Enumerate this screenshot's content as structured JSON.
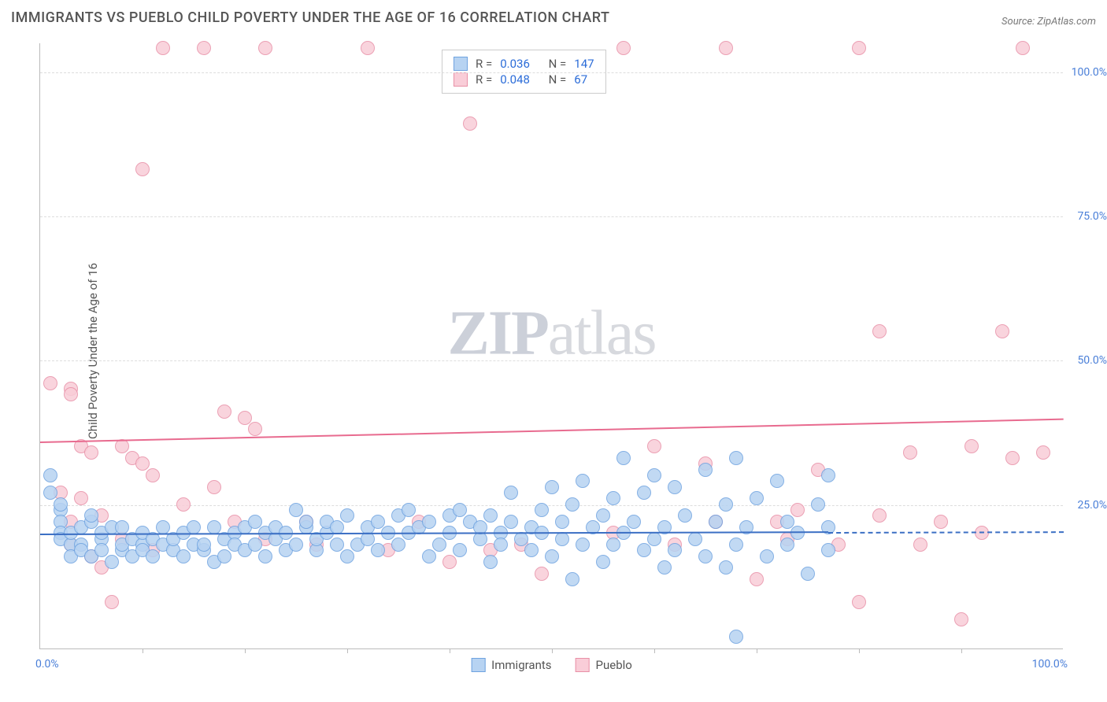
{
  "chart": {
    "type": "scatter",
    "title": "IMMIGRANTS VS PUEBLO CHILD POVERTY UNDER THE AGE OF 16 CORRELATION CHART",
    "source_label": "Source: ZipAtlas.com",
    "watermark": {
      "bold": "ZIP",
      "light": "atlas"
    },
    "yaxis": {
      "label": "Child Poverty Under the Age of 16",
      "min": 0,
      "max": 105,
      "ticks": [
        25,
        50,
        75,
        100
      ],
      "tick_labels": [
        "25.0%",
        "50.0%",
        "75.0%",
        "100.0%"
      ],
      "label_fontsize": 15,
      "tick_color": "#4a7fd8"
    },
    "xaxis": {
      "min": 0,
      "max": 100,
      "ticks": [
        10,
        20,
        30,
        40,
        50,
        60,
        70,
        80,
        90
      ],
      "start_label": "0.0%",
      "end_label": "100.0%",
      "tick_color": "#4a7fd8"
    },
    "grid_color": "#dddddd",
    "background_color": "#ffffff",
    "series": [
      {
        "name": "Immigrants",
        "fill": "#b7d3f2",
        "stroke": "#6fa3e0",
        "marker_radius": 9,
        "stats": {
          "R": "0.036",
          "N": "147"
        },
        "trend": {
          "y_start": 20,
          "y_end": 20.5,
          "x_solid_end": 77,
          "color": "#3b6fc4"
        },
        "points": [
          [
            1,
            30
          ],
          [
            1,
            27
          ],
          [
            2,
            24
          ],
          [
            2,
            22
          ],
          [
            2,
            20
          ],
          [
            2,
            19
          ],
          [
            2,
            25
          ],
          [
            3,
            18
          ],
          [
            3,
            20
          ],
          [
            3,
            16
          ],
          [
            4,
            21
          ],
          [
            4,
            18
          ],
          [
            4,
            17
          ],
          [
            5,
            22
          ],
          [
            5,
            23
          ],
          [
            5,
            16
          ],
          [
            6,
            19
          ],
          [
            6,
            17
          ],
          [
            6,
            20
          ],
          [
            7,
            15
          ],
          [
            7,
            21
          ],
          [
            8,
            21
          ],
          [
            8,
            17
          ],
          [
            8,
            18
          ],
          [
            9,
            19
          ],
          [
            9,
            16
          ],
          [
            10,
            18
          ],
          [
            10,
            20
          ],
          [
            10,
            17
          ],
          [
            11,
            19
          ],
          [
            11,
            16
          ],
          [
            12,
            18
          ],
          [
            12,
            21
          ],
          [
            13,
            17
          ],
          [
            13,
            19
          ],
          [
            14,
            20
          ],
          [
            14,
            16
          ],
          [
            15,
            18
          ],
          [
            15,
            21
          ],
          [
            16,
            17
          ],
          [
            16,
            18
          ],
          [
            17,
            21
          ],
          [
            17,
            15
          ],
          [
            18,
            19
          ],
          [
            18,
            16
          ],
          [
            19,
            20
          ],
          [
            19,
            18
          ],
          [
            20,
            21
          ],
          [
            20,
            17
          ],
          [
            21,
            22
          ],
          [
            21,
            18
          ],
          [
            22,
            16
          ],
          [
            22,
            20
          ],
          [
            23,
            19
          ],
          [
            23,
            21
          ],
          [
            24,
            17
          ],
          [
            24,
            20
          ],
          [
            25,
            24
          ],
          [
            25,
            18
          ],
          [
            26,
            21
          ],
          [
            26,
            22
          ],
          [
            27,
            17
          ],
          [
            27,
            19
          ],
          [
            28,
            20
          ],
          [
            28,
            22
          ],
          [
            29,
            18
          ],
          [
            29,
            21
          ],
          [
            30,
            23
          ],
          [
            30,
            16
          ],
          [
            31,
            18
          ],
          [
            32,
            19
          ],
          [
            32,
            21
          ],
          [
            33,
            22
          ],
          [
            33,
            17
          ],
          [
            34,
            20
          ],
          [
            35,
            23
          ],
          [
            35,
            18
          ],
          [
            36,
            24
          ],
          [
            36,
            20
          ],
          [
            37,
            21
          ],
          [
            38,
            22
          ],
          [
            38,
            16
          ],
          [
            39,
            18
          ],
          [
            40,
            23
          ],
          [
            40,
            20
          ],
          [
            41,
            24
          ],
          [
            41,
            17
          ],
          [
            42,
            22
          ],
          [
            43,
            19
          ],
          [
            43,
            21
          ],
          [
            44,
            15
          ],
          [
            44,
            23
          ],
          [
            45,
            20
          ],
          [
            45,
            18
          ],
          [
            46,
            22
          ],
          [
            46,
            27
          ],
          [
            47,
            19
          ],
          [
            48,
            17
          ],
          [
            48,
            21
          ],
          [
            49,
            24
          ],
          [
            49,
            20
          ],
          [
            50,
            28
          ],
          [
            50,
            16
          ],
          [
            51,
            19
          ],
          [
            51,
            22
          ],
          [
            52,
            25
          ],
          [
            52,
            12
          ],
          [
            53,
            29
          ],
          [
            53,
            18
          ],
          [
            54,
            21
          ],
          [
            55,
            23
          ],
          [
            55,
            15
          ],
          [
            56,
            26
          ],
          [
            56,
            18
          ],
          [
            57,
            33
          ],
          [
            57,
            20
          ],
          [
            58,
            22
          ],
          [
            59,
            17
          ],
          [
            59,
            27
          ],
          [
            60,
            30
          ],
          [
            60,
            19
          ],
          [
            61,
            21
          ],
          [
            61,
            14
          ],
          [
            62,
            28
          ],
          [
            62,
            17
          ],
          [
            63,
            23
          ],
          [
            64,
            19
          ],
          [
            65,
            31
          ],
          [
            65,
            16
          ],
          [
            66,
            22
          ],
          [
            67,
            25
          ],
          [
            67,
            14
          ],
          [
            68,
            33
          ],
          [
            68,
            18
          ],
          [
            68,
            2
          ],
          [
            69,
            21
          ],
          [
            70,
            26
          ],
          [
            71,
            16
          ],
          [
            72,
            29
          ],
          [
            73,
            18
          ],
          [
            73,
            22
          ],
          [
            74,
            20
          ],
          [
            75,
            13
          ],
          [
            76,
            25
          ],
          [
            77,
            17
          ],
          [
            77,
            21
          ],
          [
            77,
            30
          ]
        ]
      },
      {
        "name": "Pueblo",
        "fill": "#f9cdd8",
        "stroke": "#e890a7",
        "marker_radius": 9,
        "stats": {
          "R": "0.048",
          "N": "67"
        },
        "trend": {
          "y_start": 36,
          "y_end": 40,
          "x_solid_end": 100,
          "color": "#e86b8f"
        },
        "points": [
          [
            1,
            46
          ],
          [
            2,
            27
          ],
          [
            3,
            45
          ],
          [
            3,
            44
          ],
          [
            3,
            22
          ],
          [
            3,
            18
          ],
          [
            4,
            35
          ],
          [
            4,
            26
          ],
          [
            5,
            16
          ],
          [
            5,
            34
          ],
          [
            6,
            14
          ],
          [
            6,
            23
          ],
          [
            7,
            8
          ],
          [
            8,
            35
          ],
          [
            8,
            19
          ],
          [
            9,
            33
          ],
          [
            10,
            32
          ],
          [
            10,
            83
          ],
          [
            11,
            17
          ],
          [
            11,
            30
          ],
          [
            12,
            104
          ],
          [
            14,
            25
          ],
          [
            16,
            104
          ],
          [
            17,
            28
          ],
          [
            18,
            41
          ],
          [
            19,
            22
          ],
          [
            20,
            40
          ],
          [
            21,
            38
          ],
          [
            22,
            104
          ],
          [
            22,
            19
          ],
          [
            26,
            22
          ],
          [
            27,
            18
          ],
          [
            32,
            104
          ],
          [
            34,
            17
          ],
          [
            37,
            22
          ],
          [
            40,
            15
          ],
          [
            42,
            91
          ],
          [
            44,
            17
          ],
          [
            47,
            18
          ],
          [
            49,
            13
          ],
          [
            56,
            20
          ],
          [
            57,
            104
          ],
          [
            60,
            35
          ],
          [
            62,
            18
          ],
          [
            65,
            32
          ],
          [
            66,
            22
          ],
          [
            67,
            104
          ],
          [
            70,
            12
          ],
          [
            72,
            22
          ],
          [
            73,
            19
          ],
          [
            74,
            24
          ],
          [
            76,
            31
          ],
          [
            78,
            18
          ],
          [
            80,
            104
          ],
          [
            80,
            8
          ],
          [
            82,
            23
          ],
          [
            82,
            55
          ],
          [
            85,
            34
          ],
          [
            86,
            18
          ],
          [
            88,
            22
          ],
          [
            90,
            5
          ],
          [
            91,
            35
          ],
          [
            92,
            20
          ],
          [
            94,
            55
          ],
          [
            95,
            33
          ],
          [
            96,
            104
          ],
          [
            98,
            34
          ]
        ]
      }
    ],
    "stats_box": {
      "rows": [
        {
          "swatch_fill": "#b7d3f2",
          "swatch_stroke": "#6fa3e0",
          "r_label": "R =",
          "n_label": "N ="
        },
        {
          "swatch_fill": "#f9cdd8",
          "swatch_stroke": "#e890a7",
          "r_label": "R =",
          "n_label": "N ="
        }
      ]
    },
    "bottom_legend": [
      {
        "swatch_fill": "#b7d3f2",
        "swatch_stroke": "#6fa3e0",
        "label_key": 0
      },
      {
        "swatch_fill": "#f9cdd8",
        "swatch_stroke": "#e890a7",
        "label_key": 1
      }
    ]
  }
}
